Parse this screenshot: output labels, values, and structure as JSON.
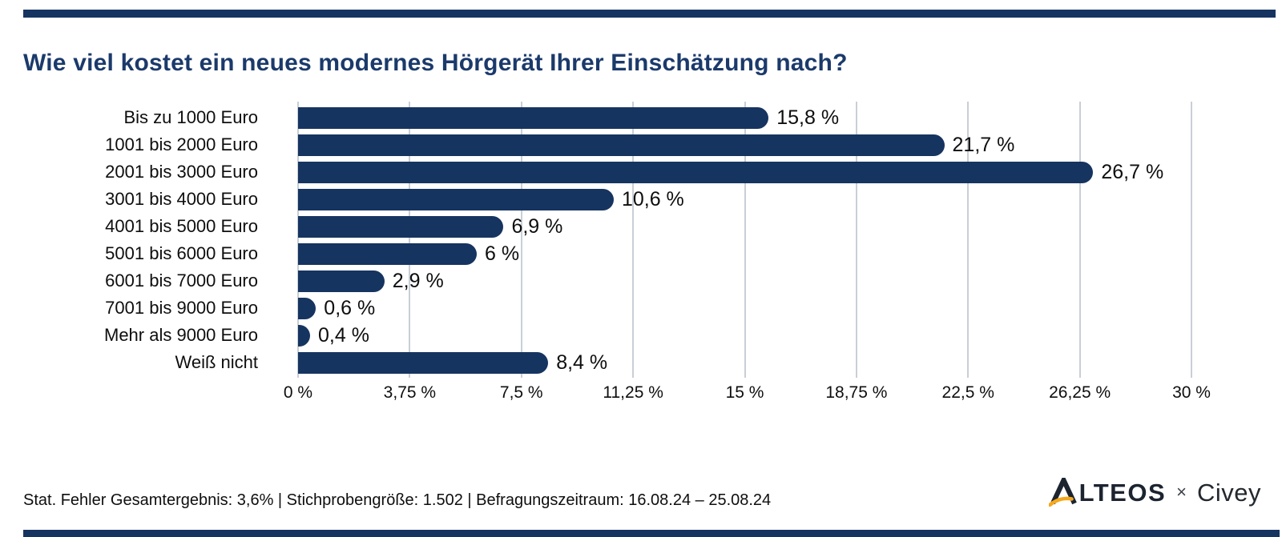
{
  "title": "Wie viel kostet ein neues modernes Hörgerät Ihrer Einschätzung nach?",
  "colors": {
    "navy": "#163460",
    "title_navy": "#1b3a6b",
    "grid": "#c9cfd6",
    "logo_dark": "#1c2430",
    "logo_orange": "#f5a81c"
  },
  "chart_data": {
    "type": "bar",
    "orientation": "horizontal",
    "title": "Wie viel kostet ein neues modernes Hörgerät Ihrer Einschätzung nach?",
    "categories": [
      "Bis zu 1000 Euro",
      "1001 bis 2000 Euro",
      "2001 bis 3000 Euro",
      "3001 bis 4000 Euro",
      "4001 bis 5000 Euro",
      "5001 bis 6000 Euro",
      "6001 bis 7000 Euro",
      "7001 bis 9000 Euro",
      "Mehr als 9000 Euro",
      "Weiß nicht"
    ],
    "values": [
      15.8,
      21.7,
      26.7,
      10.6,
      6.9,
      6,
      2.9,
      0.6,
      0.4,
      8.4
    ],
    "value_labels": [
      "15,8 %",
      "21,7 %",
      "26,7 %",
      "10,6 %",
      "6,9 %",
      "6 %",
      "2,9 %",
      "0,6 %",
      "0,4 %",
      "8,4 %"
    ],
    "xlim": [
      0,
      30
    ],
    "x_ticks": [
      0,
      3.75,
      7.5,
      11.25,
      15,
      18.75,
      22.5,
      26.25,
      30
    ],
    "x_tick_labels": [
      "0 %",
      "3,75 %",
      "7,5 %",
      "11,25 %",
      "15 %",
      "18,75 %",
      "22,5 %",
      "26,25 %",
      "30 %"
    ],
    "grid": true,
    "bar_color": "#163460",
    "xlabel": "",
    "ylabel": ""
  },
  "footer": {
    "text": "Stat. Fehler Gesamtergebnis: 3,6% | Stichprobengröße: 1.502 | Befragungszeitraum: 16.08.24 – 25.08.24"
  },
  "logo": {
    "alteos_full": "ALTEOS",
    "alteos_rest": "LTEOS",
    "separator": "×",
    "civey": "Civey"
  }
}
